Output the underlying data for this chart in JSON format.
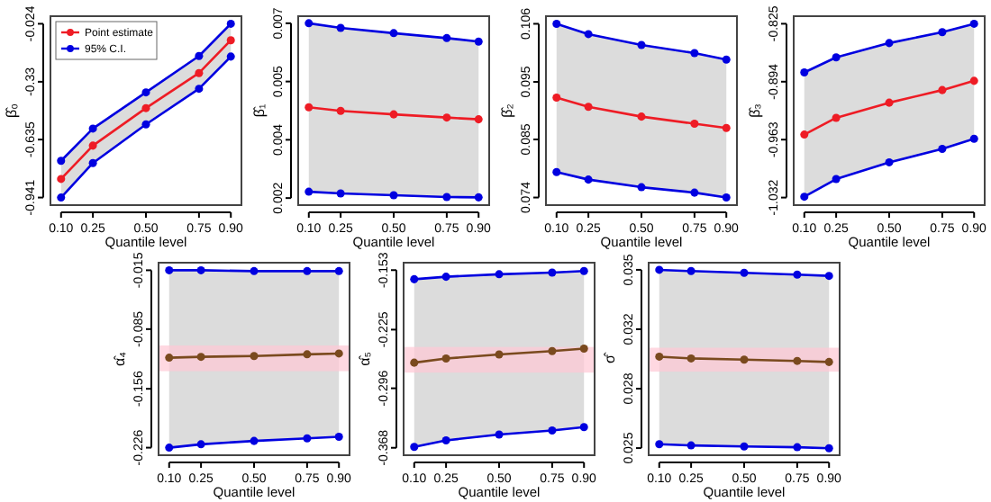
{
  "chart_data": [
    {
      "type": "line",
      "ylabel": "β̂₀",
      "xlabel": "Quantile level",
      "x": [
        0.1,
        0.25,
        0.5,
        0.75,
        0.9
      ],
      "xlim": [
        0.05,
        0.95
      ],
      "xticks": [
        {
          "value": 0.1,
          "label": "0.10"
        },
        {
          "value": 0.25,
          "label": "0.25"
        },
        {
          "value": 0.5,
          "label": "0.50"
        },
        {
          "value": 0.75,
          "label": "0.75"
        },
        {
          "value": 0.9,
          "label": "0.90"
        }
      ],
      "ylim": [
        -0.981,
        0.016
      ],
      "yticks": [
        -0.941,
        -0.635,
        -0.33,
        -0.024
      ],
      "marker": "circle",
      "legend": "top left",
      "series": [
        {
          "name": "Point estimate",
          "color": "#ee1c25",
          "values": [
            -0.843,
            -0.667,
            -0.469,
            -0.284,
            -0.111
          ],
          "lower": [
            -0.941,
            -0.759,
            -0.555,
            -0.367,
            -0.197
          ],
          "upper": [
            -0.747,
            -0.577,
            -0.386,
            -0.194,
            -0.024
          ]
        },
        {
          "name": "95% C.I.",
          "color": "#0000e0",
          "values": [
            -0.747,
            -0.577,
            -0.386,
            -0.194,
            -0.024
          ]
        },
        {
          "color": "#0000e0",
          "values": [
            -0.941,
            -0.759,
            -0.555,
            -0.367,
            -0.197
          ]
        }
      ]
    },
    {
      "type": "line",
      "ylabel": "β̂₁",
      "xlabel": "Quantile level",
      "x": [
        0.1,
        0.25,
        0.5,
        0.75,
        0.9
      ],
      "xlim": [
        0.05,
        0.95
      ],
      "xticks": [
        {
          "value": 0.1,
          "label": "0.10"
        },
        {
          "value": 0.25,
          "label": "0.25"
        },
        {
          "value": 0.5,
          "label": "0.50"
        },
        {
          "value": 0.75,
          "label": "0.75"
        },
        {
          "value": 0.9,
          "label": "0.90"
        }
      ],
      "ylim": [
        0.0018,
        0.00715
      ],
      "yticks": [
        {
          "value": 0.002,
          "label": "0.002"
        },
        {
          "value": 0.00365,
          "label": "0.004"
        },
        {
          "value": 0.0053,
          "label": "0.005"
        },
        {
          "value": 0.00695,
          "label": "0.007"
        }
      ],
      "marker": "circle",
      "series": [
        {
          "color": "#ee1c25",
          "values": [
            0.00457,
            0.00447,
            0.00437,
            0.00428,
            0.00423
          ],
          "lower": [
            0.00218,
            0.00213,
            0.00208,
            0.00203,
            0.00202
          ],
          "upper": [
            0.00695,
            0.00682,
            0.00667,
            0.00653,
            0.00643
          ]
        },
        {
          "color": "#0000e0",
          "values": [
            0.00695,
            0.00682,
            0.00667,
            0.00653,
            0.00643
          ]
        },
        {
          "color": "#0000e0",
          "values": [
            0.00218,
            0.00213,
            0.00208,
            0.00203,
            0.00202
          ]
        }
      ]
    },
    {
      "type": "line",
      "ylabel": "β̂₂",
      "xlabel": "Quantile level",
      "x": [
        0.1,
        0.25,
        0.5,
        0.75,
        0.9
      ],
      "xlim": [
        0.05,
        0.95
      ],
      "xticks": [
        {
          "value": 0.1,
          "label": "0.10"
        },
        {
          "value": 0.25,
          "label": "0.25"
        },
        {
          "value": 0.5,
          "label": "0.50"
        },
        {
          "value": 0.75,
          "label": "0.75"
        },
        {
          "value": 0.9,
          "label": "0.90"
        }
      ],
      "ylim": [
        0.0726,
        0.1074
      ],
      "yticks": [
        {
          "value": 0.074,
          "label": "0.074"
        },
        {
          "value": 0.0847,
          "label": "0.085"
        },
        {
          "value": 0.0953,
          "label": "0.095"
        },
        {
          "value": 0.106,
          "label": "0.106"
        }
      ],
      "marker": "circle",
      "series": [
        {
          "color": "#ee1c25",
          "values": [
            0.0924,
            0.0907,
            0.0889,
            0.0876,
            0.0868
          ],
          "lower": [
            0.0787,
            0.0773,
            0.0759,
            0.0749,
            0.074
          ],
          "upper": [
            0.106,
            0.1041,
            0.1021,
            0.1006,
            0.0994
          ]
        },
        {
          "color": "#0000e0",
          "values": [
            0.106,
            0.1041,
            0.1021,
            0.1006,
            0.0994
          ]
        },
        {
          "color": "#0000e0",
          "values": [
            0.0787,
            0.0773,
            0.0759,
            0.0749,
            0.074
          ]
        }
      ]
    },
    {
      "type": "line",
      "ylabel": "β̂₃",
      "xlabel": "Quantile level",
      "x": [
        0.1,
        0.25,
        0.5,
        0.75,
        0.9
      ],
      "xlim": [
        0.05,
        0.95
      ],
      "xticks": [
        {
          "value": 0.1,
          "label": "0.10"
        },
        {
          "value": 0.25,
          "label": "0.25"
        },
        {
          "value": 0.5,
          "label": "0.50"
        },
        {
          "value": 0.75,
          "label": "0.75"
        },
        {
          "value": 0.9,
          "label": "0.90"
        }
      ],
      "ylim": [
        -1.041,
        -0.816
      ],
      "yticks": [
        -1.032,
        -0.963,
        -0.894,
        -0.825
      ],
      "marker": "circle",
      "series": [
        {
          "color": "#ee1c25",
          "values": [
            -0.957,
            -0.937,
            -0.919,
            -0.904,
            -0.893
          ],
          "lower": [
            -1.031,
            -1.01,
            -0.99,
            -0.974,
            -0.962
          ],
          "upper": [
            -0.883,
            -0.865,
            -0.848,
            -0.835,
            -0.825
          ]
        },
        {
          "color": "#0000e0",
          "values": [
            -0.883,
            -0.865,
            -0.848,
            -0.835,
            -0.825
          ]
        },
        {
          "color": "#0000e0",
          "values": [
            -1.031,
            -1.01,
            -0.99,
            -0.974,
            -0.962
          ]
        }
      ]
    },
    {
      "type": "line",
      "ylabel": "α̂₄",
      "xlabel": "Quantile level",
      "x": [
        0.1,
        0.25,
        0.5,
        0.75,
        0.9
      ],
      "xlim": [
        0.05,
        0.95
      ],
      "xticks": [
        {
          "value": 0.1,
          "label": "0.10"
        },
        {
          "value": 0.25,
          "label": "0.25"
        },
        {
          "value": 0.5,
          "label": "0.50"
        },
        {
          "value": 0.75,
          "label": "0.75"
        },
        {
          "value": 0.9,
          "label": "0.90"
        }
      ],
      "ylim": [
        -0.235,
        -0.006
      ],
      "yticks": [
        -0.226,
        -0.156,
        -0.085,
        -0.015
      ],
      "marker": "circle",
      "bands": [
        {
          "axis": "y",
          "from": -0.135,
          "to": -0.1045,
          "color": "#ffc8d4"
        }
      ],
      "series": [
        {
          "color": "#7a4a1e",
          "values": [
            -0.119,
            -0.118,
            -0.117,
            -0.115,
            -0.114
          ],
          "lower": [
            -0.226,
            -0.222,
            -0.218,
            -0.215,
            -0.213
          ],
          "upper": [
            -0.015,
            -0.015,
            -0.016,
            -0.016,
            -0.016
          ]
        },
        {
          "color": "#0000e0",
          "values": [
            -0.015,
            -0.015,
            -0.016,
            -0.016,
            -0.016
          ]
        },
        {
          "color": "#0000e0",
          "values": [
            -0.226,
            -0.222,
            -0.218,
            -0.215,
            -0.213
          ]
        }
      ]
    },
    {
      "type": "line",
      "ylabel": "α̂₅",
      "xlabel": "Quantile level",
      "x": [
        0.1,
        0.25,
        0.5,
        0.75,
        0.9
      ],
      "xlim": [
        0.05,
        0.95
      ],
      "xticks": [
        {
          "value": 0.1,
          "label": "0.10"
        },
        {
          "value": 0.25,
          "label": "0.25"
        },
        {
          "value": 0.5,
          "label": "0.50"
        },
        {
          "value": 0.75,
          "label": "0.75"
        },
        {
          "value": 0.9,
          "label": "0.90"
        }
      ],
      "ylim": [
        -0.377,
        -0.144
      ],
      "yticks": [
        -0.368,
        -0.296,
        -0.225,
        -0.153
      ],
      "marker": "circle",
      "bands": [
        {
          "axis": "y",
          "from": -0.277,
          "to": -0.246,
          "color": "#ffc8d4"
        }
      ],
      "series": [
        {
          "color": "#7a4a1e",
          "values": [
            -0.265,
            -0.26,
            -0.255,
            -0.251,
            -0.248
          ],
          "lower": [
            -0.367,
            -0.359,
            -0.352,
            -0.347,
            -0.343
          ],
          "upper": [
            -0.164,
            -0.161,
            -0.158,
            -0.156,
            -0.154
          ]
        },
        {
          "color": "#0000e0",
          "values": [
            -0.164,
            -0.161,
            -0.158,
            -0.156,
            -0.154
          ]
        },
        {
          "color": "#0000e0",
          "values": [
            -0.367,
            -0.359,
            -0.352,
            -0.347,
            -0.343
          ]
        }
      ]
    },
    {
      "type": "line",
      "ylabel": "σ̂",
      "xlabel": "Quantile level",
      "x": [
        0.1,
        0.25,
        0.5,
        0.75,
        0.9
      ],
      "xlim": [
        0.05,
        0.95
      ],
      "xticks": [
        {
          "value": 0.1,
          "label": "0.10"
        },
        {
          "value": 0.25,
          "label": "0.25"
        },
        {
          "value": 0.5,
          "label": "0.50"
        },
        {
          "value": 0.75,
          "label": "0.75"
        },
        {
          "value": 0.9,
          "label": "0.90"
        }
      ],
      "ylim": [
        0.0246,
        0.0354
      ],
      "yticks": [
        {
          "value": 0.025,
          "label": "0.025"
        },
        {
          "value": 0.02833,
          "label": "0.028"
        },
        {
          "value": 0.03167,
          "label": "0.032"
        },
        {
          "value": 0.035,
          "label": "0.035"
        }
      ],
      "marker": "circle",
      "bands": [
        {
          "axis": "y",
          "from": 0.02929,
          "to": 0.03063,
          "color": "#ffc8d4"
        }
      ],
      "series": [
        {
          "color": "#7a4a1e",
          "values": [
            0.03013,
            0.03003,
            0.02996,
            0.02989,
            0.02983
          ],
          "lower": [
            0.02522,
            0.02515,
            0.02509,
            0.02505,
            0.02499
          ],
          "upper": [
            0.035,
            0.03493,
            0.03483,
            0.03473,
            0.03466
          ]
        },
        {
          "color": "#0000e0",
          "values": [
            0.035,
            0.03493,
            0.03483,
            0.03473,
            0.03466
          ]
        },
        {
          "color": "#0000e0",
          "values": [
            0.02522,
            0.02515,
            0.02509,
            0.02505,
            0.02499
          ]
        }
      ]
    }
  ]
}
